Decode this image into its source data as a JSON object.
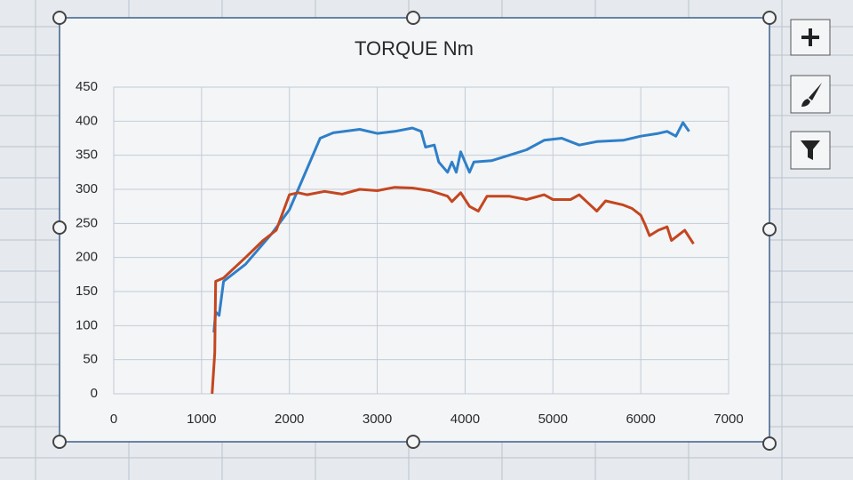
{
  "chart_data": {
    "type": "line",
    "title": "TORQUE Nm",
    "series": [
      {
        "color": "#2f7fc8",
        "x": [
          1140,
          1160,
          1200,
          1250,
          1500,
          1800,
          2000,
          2200,
          2350,
          2500,
          2800,
          3000,
          3200,
          3400,
          3500,
          3550,
          3650,
          3700,
          3800,
          3850,
          3900,
          3950,
          4000,
          4050,
          4100,
          4300,
          4500,
          4700,
          4900,
          5100,
          5300,
          5500,
          5800,
          6000,
          6200,
          6300,
          6400,
          6480,
          6550
        ],
        "values": [
          90,
          120,
          115,
          165,
          190,
          235,
          270,
          330,
          375,
          383,
          388,
          382,
          385,
          390,
          385,
          362,
          365,
          340,
          325,
          340,
          325,
          355,
          340,
          325,
          340,
          342,
          350,
          358,
          372,
          375,
          365,
          370,
          372,
          378,
          382,
          385,
          378,
          398,
          385
        ]
      },
      {
        "color": "#c4461f",
        "x": [
          1120,
          1150,
          1160,
          1250,
          1500,
          1700,
          1850,
          2000,
          2100,
          2200,
          2400,
          2600,
          2800,
          3000,
          3200,
          3400,
          3600,
          3800,
          3850,
          3950,
          4050,
          4150,
          4250,
          4500,
          4700,
          4900,
          5000,
          5200,
          5300,
          5400,
          5500,
          5600,
          5800,
          5900,
          6000,
          6050,
          6100,
          6200,
          6300,
          6350,
          6400,
          6500,
          6600
        ],
        "values": [
          0,
          60,
          165,
          170,
          200,
          225,
          240,
          292,
          295,
          292,
          297,
          293,
          300,
          298,
          303,
          302,
          298,
          290,
          282,
          295,
          275,
          268,
          290,
          290,
          285,
          292,
          285,
          285,
          292,
          280,
          268,
          283,
          277,
          272,
          262,
          248,
          232,
          240,
          245,
          225,
          230,
          240,
          220
        ]
      }
    ],
    "xlim": [
      0,
      7000
    ],
    "xticks": [
      0,
      1000,
      2000,
      3000,
      4000,
      5000,
      6000,
      7000
    ],
    "ylim": [
      0,
      450
    ],
    "yticks": [
      0,
      50,
      100,
      150,
      200,
      250,
      300,
      350,
      400,
      450
    ],
    "grid": true
  }
}
